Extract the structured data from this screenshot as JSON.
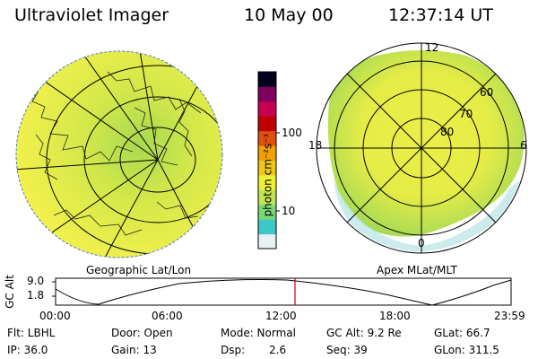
{
  "header": {
    "title": "Ultraviolet Imager",
    "date": "10 May 00",
    "time": "12:37:14 UT"
  },
  "colors": {
    "background": "#ffffff",
    "ink": "#000000",
    "time_marker": "#cc0000",
    "colorbar": [
      "#e8f0f4",
      "#3cc8c8",
      "#78d878",
      "#bfe650",
      "#f0f032",
      "#f0c814",
      "#f0a000",
      "#e05010",
      "#c00000",
      "#c80050",
      "#800060",
      "#000020"
    ]
  },
  "colorbar": {
    "unit_label": "photon cm⁻²s⁻¹",
    "tick_labels": [
      "100",
      "10"
    ]
  },
  "left_panel": {
    "caption": "Geographic Lat/Lon"
  },
  "right_panel": {
    "caption": "Apex MLat/MLT",
    "mlt_labels": {
      "top": "12",
      "left": "18",
      "right": "6",
      "bottom": "0"
    },
    "lat_labels": [
      "60",
      "70",
      "80"
    ]
  },
  "altitude_plot": {
    "ylabel": "GC Alt",
    "y_ticks": [
      "9.0",
      "1.8"
    ],
    "x_ticks": [
      "00:00",
      "06:00",
      "12:00",
      "18:00",
      "23:59"
    ]
  },
  "info": {
    "filter": "Flt: LBHL",
    "ip": "IP: 36.0",
    "door": "Door: Open",
    "gain": "Gain: 13",
    "mode": "Mode: Normal",
    "dsp_label": "Dsp:",
    "dsp_value": "2.6",
    "gc_alt": "GC Alt: 9.2 Re",
    "seq": "Seq: 39",
    "glat": "GLat: 66.7",
    "glon": "GLon: 311.5"
  }
}
